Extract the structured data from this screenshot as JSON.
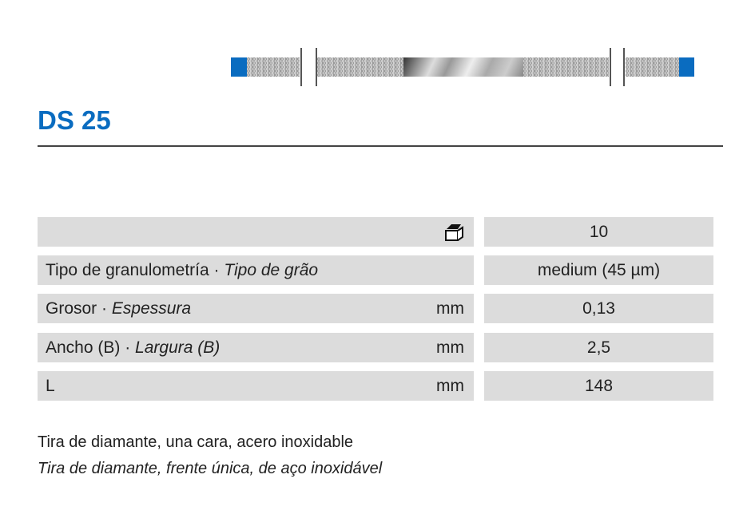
{
  "product": {
    "title": "DS 25"
  },
  "table": {
    "rows": [
      {
        "label": "",
        "label_it": "",
        "unit": "",
        "value": "10",
        "icon": "package-box-icon"
      },
      {
        "label": "Tipo de granulometría · ",
        "label_it": "Tipo de grão",
        "unit": "",
        "value": "medium (45 µm)"
      },
      {
        "label": "Grosor · ",
        "label_it": "Espessura",
        "unit": "mm",
        "value": "0,13"
      },
      {
        "label": "Ancho (B) · ",
        "label_it": "Largura (B)",
        "unit": "mm",
        "value": "2,5"
      },
      {
        "label": "L",
        "label_it": "",
        "unit": "mm",
        "value": "148"
      }
    ]
  },
  "description": {
    "es": "Tira de diamante, una cara, acero inoxidable",
    "pt": "Tira de diamante, frente única, de aço inoxidável"
  },
  "colors": {
    "accent": "#0a6cc0",
    "cell": "#dcdcdc"
  }
}
